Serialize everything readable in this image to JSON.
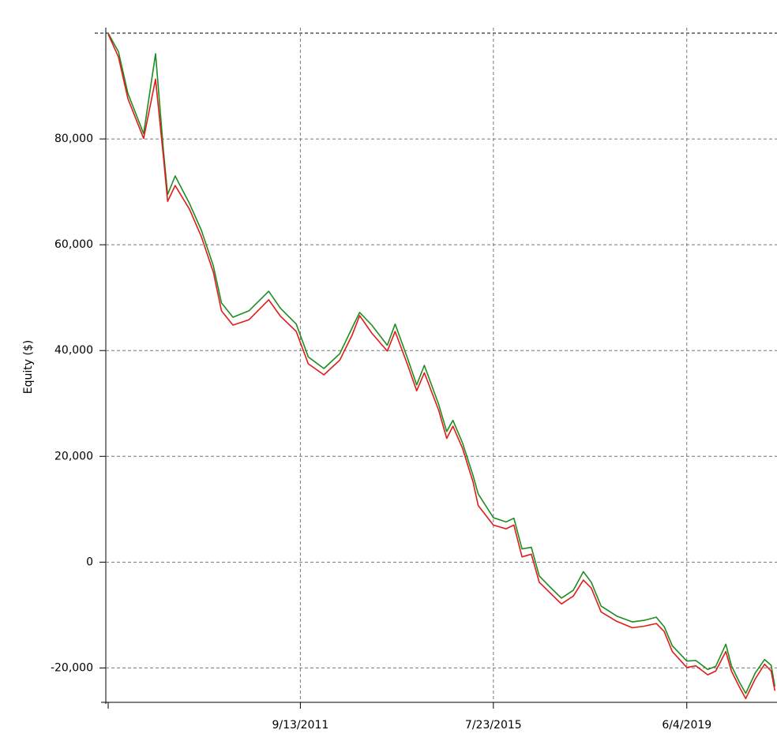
{
  "chart_data": {
    "type": "line",
    "y_label": "Equity ($)",
    "x": [
      "11/10/2007",
      "1/24/2008",
      "4/2/2008",
      "7/26/2008",
      "10/21/2008",
      "12/18/2008",
      "1/17/2009",
      "3/13/2009",
      "6/26/2009",
      "9/21/2009",
      "12/17/2009",
      "2/14/2010",
      "5/9/2010",
      "9/2/2010",
      "1/25/2011",
      "4/20/2011",
      "8/14/2011",
      "11/10/2011",
      "3/3/2012",
      "6/27/2012",
      "9/23/2012",
      "11/19/2012",
      "2/15/2013",
      "6/9/2013",
      "8/5/2013",
      "11/1/2013",
      "1/9/2014",
      "3/6/2014",
      "6/19/2014",
      "8/16/2014",
      "10/1/2014",
      "12/10/2014",
      "2/24/2015",
      "4/3/2015",
      "7/23/2015",
      "10/23/2015",
      "12/20/2015",
      "2/17/2016",
      "4/25/2016",
      "6/22/2016",
      "9/5/2016",
      "12/1/2016",
      "2/26/2017",
      "5/10/2017",
      "7/7/2017",
      "9/16/2017",
      "1/9/2018",
      "5/3/2018",
      "7/28/2018",
      "10/24/2018",
      "12/21/2018",
      "2/18/2019",
      "6/4/2019",
      "8/9/2019",
      "11/4/2019",
      "1/1/2020",
      "3/15/2020",
      "4/25/2020",
      "6/22/2020",
      "8/7/2020",
      "10/15/2020",
      "12/23/2020",
      "2/9/2021",
      "3/8/2021"
    ],
    "series": [
      {
        "color": "#1e8c1e",
        "values": [
          100000,
          96500,
          88600,
          81000,
          96100,
          77600,
          69500,
          73000,
          67800,
          62700,
          56000,
          49000,
          46300,
          47500,
          51200,
          48000,
          45000,
          38800,
          36600,
          39400,
          44200,
          47200,
          44800,
          41000,
          45000,
          38700,
          33500,
          37200,
          29800,
          24700,
          26800,
          22500,
          16400,
          12900,
          8400,
          7600,
          8300,
          2500,
          2800,
          -2600,
          -4600,
          -6800,
          -5300,
          -1800,
          -3800,
          -8300,
          -10200,
          -11300,
          -11000,
          -10400,
          -12200,
          -15800,
          -18700,
          -18600,
          -20300,
          -19700,
          -15500,
          -19600,
          -22700,
          -24800,
          -21000,
          -18400,
          -19500,
          -23500
        ]
      },
      {
        "color": "#e31a1a",
        "values": [
          99800,
          95500,
          87600,
          80100,
          91300,
          76400,
          68200,
          71200,
          66700,
          61500,
          54800,
          47500,
          44800,
          45800,
          49600,
          46500,
          43600,
          37500,
          35400,
          38200,
          42800,
          46600,
          43300,
          39900,
          43600,
          37500,
          32400,
          35800,
          28700,
          23400,
          25700,
          21500,
          15200,
          10700,
          7000,
          6300,
          7000,
          1000,
          1500,
          -3800,
          -5700,
          -7900,
          -6400,
          -3400,
          -4900,
          -9400,
          -11200,
          -12400,
          -12100,
          -11600,
          -13100,
          -16900,
          -19900,
          -19600,
          -21300,
          -20600,
          -16900,
          -20600,
          -23600,
          -25800,
          -22100,
          -19300,
          -20600,
          -24300
        ]
      }
    ],
    "xlim": [
      "11/10/2007",
      "3/12/2021"
    ],
    "xticks": [
      "9/13/2011",
      "7/23/2015",
      "6/4/2019"
    ],
    "ylim": [
      -26500,
      100000
    ],
    "yticks": [
      {
        "value": -20000,
        "label": "-20,000"
      },
      0,
      {
        "value": 20000,
        "label": "20,000"
      },
      {
        "value": 40000,
        "label": "40,000"
      },
      {
        "value": 60000,
        "label": "60,000"
      },
      {
        "value": 80000,
        "label": "80,000"
      }
    ],
    "grid": true
  }
}
